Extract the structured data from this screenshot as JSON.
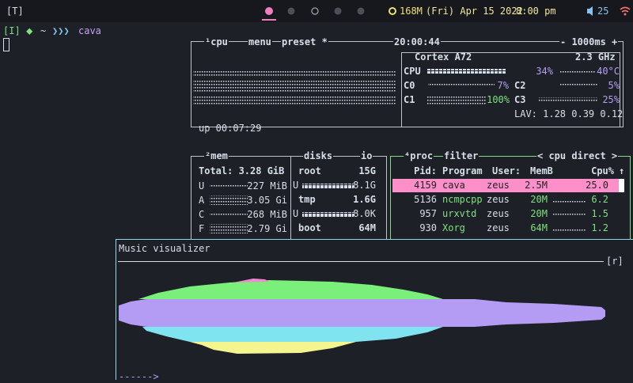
{
  "topbar": {
    "tag": "[T]",
    "memory": "168M",
    "date": "(Fri) Apr 15 2022",
    "time": "8:00 pm",
    "volume": "25"
  },
  "terminal": {
    "prompt": {
      "mode": "[I]",
      "symbol": "⬥",
      "dir": "~",
      "arrows": "❯❯❯",
      "command": "cava"
    }
  },
  "btop": {
    "cpu_box": {
      "tabs": [
        "¹cpu",
        "menu",
        "preset *"
      ],
      "clock": "20:00:44",
      "interval": "- 1000ms +",
      "uptime": "up 00:07:29",
      "model": "Cortex A72",
      "freq": "2.3 GHz",
      "cores": [
        {
          "label": "CPU",
          "value": "34%",
          "temp": "40°C"
        },
        {
          "label": "C0",
          "value": "7%"
        },
        {
          "label": "C2",
          "value": "5%"
        },
        {
          "label": "C1",
          "value": "100%"
        },
        {
          "label": "C3",
          "value": "25%"
        }
      ],
      "load": "LAV: 1.28 0.39 0.12"
    },
    "mem_box": {
      "tabs": [
        "²mem",
        "disks",
        "io"
      ],
      "total": "Total: 3.28 GiB",
      "rows": [
        [
          "U",
          "227 MiB"
        ],
        [
          "A",
          "3.05 Gi"
        ],
        [
          "C",
          "268 MiB"
        ],
        [
          "F",
          "2.79 Gi"
        ]
      ],
      "disks": [
        [
          "root",
          "15G"
        ],
        [
          "U",
          "8.1G"
        ],
        [
          "tmp",
          "1.6G"
        ],
        [
          "U",
          "8.0K"
        ],
        [
          "boot",
          "64M"
        ]
      ]
    },
    "proc_box": {
      "tabs": [
        "⁴proc",
        "filter",
        "< cpu direct >"
      ],
      "sort": "↑",
      "headers": [
        "Pid:",
        "Program",
        "User:",
        "MemB",
        "Cpu%"
      ],
      "rows": [
        [
          "4159",
          "cava",
          "zeus",
          "2.5M",
          "25.0"
        ],
        [
          "5136",
          "ncmpcpp",
          "zeus",
          "20M",
          "6.2"
        ],
        [
          "957",
          "urxvtd",
          "zeus",
          "20M",
          "1.5"
        ],
        [
          "930",
          "Xorg",
          "zeus",
          "64M",
          "1.2"
        ]
      ]
    }
  },
  "music_window": {
    "title": "Music visualizer",
    "button": "[r]",
    "footer": "------>"
  }
}
